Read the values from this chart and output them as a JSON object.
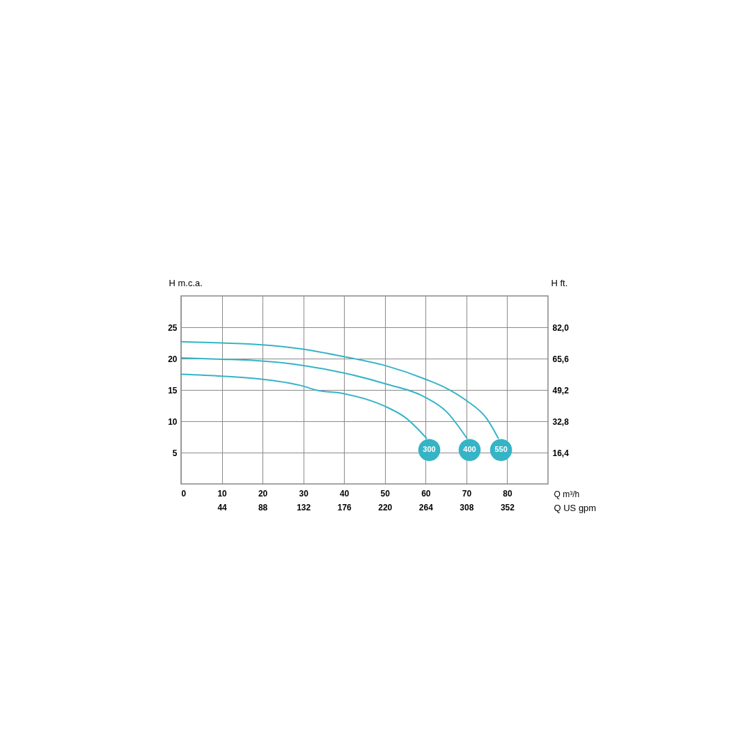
{
  "chart_data": {
    "type": "line",
    "ylabel": "H m.c.a.",
    "y2label": "H ft.",
    "xlabel": "Q m³/h",
    "x2label": "Q US gpm",
    "xlim": [
      0,
      90
    ],
    "xticks": [
      0,
      10,
      20,
      30,
      40,
      50,
      60,
      70,
      80
    ],
    "x2lim": [
      0,
      396
    ],
    "x2ticks": [
      44,
      88,
      132,
      176,
      220,
      264,
      308,
      352
    ],
    "ylim": [
      0,
      30
    ],
    "yticks": [
      5,
      10,
      15,
      20,
      25
    ],
    "y2lim": [
      0,
      98.4
    ],
    "y2ticks": [
      {
        "value": 16.4,
        "label": "16,4"
      },
      {
        "value": 32.8,
        "label": "32,8"
      },
      {
        "value": 49.2,
        "label": "49,2"
      },
      {
        "value": 65.6,
        "label": "65,6"
      },
      {
        "value": 82.0,
        "label": "82,0"
      }
    ],
    "grid": true,
    "legend": false,
    "marker": "none",
    "line_style": "solid",
    "series": [
      {
        "name": "300",
        "color": "#35b4c6",
        "x": [
          0,
          10,
          20,
          30,
          33,
          40,
          50,
          55,
          60.2
        ],
        "values": [
          17.5,
          17.2,
          16.7,
          15.6,
          15.0,
          14.4,
          12.4,
          10.6,
          7.3
        ]
      },
      {
        "name": "400",
        "color": "#35b4c6",
        "x": [
          0,
          10,
          20,
          30,
          40,
          50,
          60,
          65,
          70.1
        ],
        "values": [
          20.1,
          19.9,
          19.6,
          18.9,
          17.7,
          16.0,
          13.8,
          11.6,
          7.3
        ]
      },
      {
        "name": "550",
        "color": "#35b4c6",
        "x": [
          0,
          10,
          20,
          30,
          40,
          50,
          60,
          65,
          70,
          75,
          77.8
        ],
        "values": [
          22.7,
          22.5,
          22.2,
          21.5,
          20.3,
          18.9,
          16.7,
          15.3,
          13.3,
          10.4,
          7.3
        ]
      }
    ]
  }
}
